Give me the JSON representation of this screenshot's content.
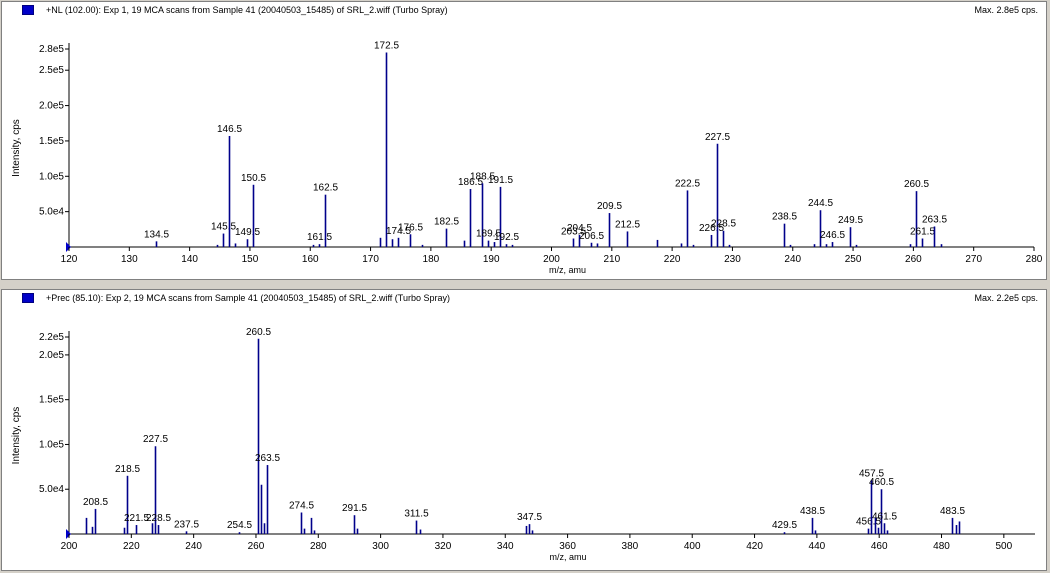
{
  "panels": [
    {
      "title": "+NL (102.00): Exp 1, 19 MCA scans from Sample 41 (20040503_15485) of SRL_2.wiff (Turbo Spray)",
      "max_label": "Max. 2.8e5 cps.",
      "header_color": "#0000c8"
    },
    {
      "title": "+Prec (85.10): Exp 2, 19 MCA scans from Sample 41 (20040503_15485) of SRL_2.wiff (Turbo Spray)",
      "max_label": "Max. 2.2e5 cps.",
      "header_color": "#0000c8"
    }
  ],
  "chart_data": [
    {
      "type": "bar",
      "xlabel": "m/z, amu",
      "ylabel": "Intensity, cps",
      "xlim": [
        120,
        280
      ],
      "ylim": [
        0,
        280000
      ],
      "x_ticks": [
        120,
        130,
        140,
        150,
        160,
        170,
        180,
        190,
        200,
        210,
        220,
        230,
        240,
        250,
        260,
        270,
        280
      ],
      "y_ticks": [
        {
          "value": 50000,
          "label": "5.0e4"
        },
        {
          "value": 100000,
          "label": "1.0e5"
        },
        {
          "value": 150000,
          "label": "1.5e5"
        },
        {
          "value": 200000,
          "label": "2.0e5"
        },
        {
          "value": 250000,
          "label": "2.5e5"
        },
        {
          "value": 280000,
          "label": "2.8e5"
        }
      ],
      "bar_color": "#00008b",
      "grid": false,
      "peaks": [
        {
          "mz": 134.5,
          "y": 8000,
          "label": "134.5"
        },
        {
          "mz": 145.5,
          "y": 19000,
          "label": "145.5"
        },
        {
          "mz": 146.5,
          "y": 157000,
          "label": "146.5"
        },
        {
          "mz": 149.5,
          "y": 11000,
          "label": "149.5"
        },
        {
          "mz": 150.5,
          "y": 88000,
          "label": "150.5"
        },
        {
          "mz": 161.5,
          "y": 4000,
          "label": "161.5"
        },
        {
          "mz": 162.5,
          "y": 74000,
          "label": "162.5"
        },
        {
          "mz": 172.5,
          "y": 275000,
          "label": "172.5"
        },
        {
          "mz": 174.5,
          "y": 13000,
          "label": "174.5"
        },
        {
          "mz": 176.5,
          "y": 18000,
          "label": "176.5"
        },
        {
          "mz": 182.5,
          "y": 26000,
          "label": "182.5"
        },
        {
          "mz": 186.5,
          "y": 82000,
          "label": "186.5"
        },
        {
          "mz": 188.5,
          "y": 90000,
          "label": "188.5"
        },
        {
          "mz": 189.5,
          "y": 9000,
          "label": "189.5"
        },
        {
          "mz": 191.5,
          "y": 85000,
          "label": "191.5"
        },
        {
          "mz": 192.5,
          "y": 4000,
          "label": "192.5"
        },
        {
          "mz": 203.5,
          "y": 12000,
          "label": "203.5"
        },
        {
          "mz": 204.5,
          "y": 17000,
          "label": "204.5"
        },
        {
          "mz": 206.5,
          "y": 6000,
          "label": "206.5"
        },
        {
          "mz": 209.5,
          "y": 48000,
          "label": "209.5"
        },
        {
          "mz": 212.5,
          "y": 22000,
          "label": "212.5"
        },
        {
          "mz": 222.5,
          "y": 80000,
          "label": "222.5"
        },
        {
          "mz": 226.5,
          "y": 17000,
          "label": "226.5"
        },
        {
          "mz": 227.5,
          "y": 146000,
          "label": "227.5"
        },
        {
          "mz": 228.5,
          "y": 23000,
          "label": "228.5"
        },
        {
          "mz": 238.5,
          "y": 33000,
          "label": "238.5"
        },
        {
          "mz": 244.5,
          "y": 52000,
          "label": "244.5"
        },
        {
          "mz": 246.5,
          "y": 7000,
          "label": "246.5"
        },
        {
          "mz": 249.5,
          "y": 28000,
          "label": "249.5"
        },
        {
          "mz": 260.5,
          "y": 79000,
          "label": "260.5"
        },
        {
          "mz": 261.5,
          "y": 12000,
          "label": "261.5"
        },
        {
          "mz": 263.5,
          "y": 29000,
          "label": "263.5"
        },
        {
          "mz": 144.5,
          "y": 3000,
          "label": ""
        },
        {
          "mz": 147.5,
          "y": 5000,
          "label": ""
        },
        {
          "mz": 160.5,
          "y": 3000,
          "label": ""
        },
        {
          "mz": 171.5,
          "y": 13000,
          "label": ""
        },
        {
          "mz": 173.5,
          "y": 11000,
          "label": ""
        },
        {
          "mz": 178.5,
          "y": 3000,
          "label": ""
        },
        {
          "mz": 185.5,
          "y": 9000,
          "label": ""
        },
        {
          "mz": 190.5,
          "y": 7000,
          "label": ""
        },
        {
          "mz": 193.5,
          "y": 3000,
          "label": ""
        },
        {
          "mz": 207.5,
          "y": 5000,
          "label": ""
        },
        {
          "mz": 217.5,
          "y": 10000,
          "label": ""
        },
        {
          "mz": 221.5,
          "y": 5000,
          "label": ""
        },
        {
          "mz": 223.5,
          "y": 3000,
          "label": ""
        },
        {
          "mz": 229.5,
          "y": 3000,
          "label": ""
        },
        {
          "mz": 239.5,
          "y": 3000,
          "label": ""
        },
        {
          "mz": 243.5,
          "y": 4000,
          "label": ""
        },
        {
          "mz": 245.5,
          "y": 4000,
          "label": ""
        },
        {
          "mz": 250.5,
          "y": 3000,
          "label": ""
        },
        {
          "mz": 259.5,
          "y": 4000,
          "label": ""
        },
        {
          "mz": 264.5,
          "y": 4000,
          "label": ""
        }
      ]
    },
    {
      "type": "bar",
      "xlabel": "m/z, amu",
      "ylabel": "Intensity, cps",
      "xlim": [
        200,
        510
      ],
      "ylim": [
        0,
        220000
      ],
      "x_ticks": [
        200,
        220,
        240,
        260,
        280,
        300,
        320,
        340,
        360,
        380,
        400,
        420,
        440,
        460,
        480,
        500
      ],
      "y_ticks": [
        {
          "value": 50000,
          "label": "5.0e4"
        },
        {
          "value": 100000,
          "label": "1.0e5"
        },
        {
          "value": 150000,
          "label": "1.5e5"
        },
        {
          "value": 200000,
          "label": "2.0e5"
        },
        {
          "value": 220000,
          "label": "2.2e5"
        }
      ],
      "bar_color": "#00008b",
      "grid": false,
      "peaks": [
        {
          "mz": 208.5,
          "y": 28000,
          "label": "208.5"
        },
        {
          "mz": 218.5,
          "y": 65000,
          "label": "218.5"
        },
        {
          "mz": 221.5,
          "y": 10000,
          "label": "221.5"
        },
        {
          "mz": 227.5,
          "y": 98000,
          "label": "227.5"
        },
        {
          "mz": 228.5,
          "y": 10000,
          "label": "228.5"
        },
        {
          "mz": 237.5,
          "y": 3000,
          "label": "237.5"
        },
        {
          "mz": 254.5,
          "y": 2000,
          "label": "254.5"
        },
        {
          "mz": 260.5,
          "y": 218000,
          "label": "260.5"
        },
        {
          "mz": 263.5,
          "y": 77000,
          "label": "263.5"
        },
        {
          "mz": 274.5,
          "y": 24000,
          "label": "274.5"
        },
        {
          "mz": 291.5,
          "y": 21000,
          "label": "291.5"
        },
        {
          "mz": 311.5,
          "y": 15000,
          "label": "311.5"
        },
        {
          "mz": 347.5,
          "y": 11000,
          "label": "347.5"
        },
        {
          "mz": 429.5,
          "y": 2000,
          "label": "429.5"
        },
        {
          "mz": 438.5,
          "y": 18000,
          "label": "438.5"
        },
        {
          "mz": 456.5,
          "y": 6000,
          "label": "456.5"
        },
        {
          "mz": 457.5,
          "y": 60000,
          "label": "457.5"
        },
        {
          "mz": 460.5,
          "y": 50000,
          "label": "460.5"
        },
        {
          "mz": 461.5,
          "y": 12000,
          "label": "461.5"
        },
        {
          "mz": 483.5,
          "y": 18000,
          "label": "483.5"
        },
        {
          "mz": 205.5,
          "y": 18000,
          "label": ""
        },
        {
          "mz": 207.5,
          "y": 8000,
          "label": ""
        },
        {
          "mz": 217.5,
          "y": 7000,
          "label": ""
        },
        {
          "mz": 226.5,
          "y": 12000,
          "label": ""
        },
        {
          "mz": 261.5,
          "y": 55000,
          "label": ""
        },
        {
          "mz": 262.5,
          "y": 12000,
          "label": ""
        },
        {
          "mz": 275.5,
          "y": 6000,
          "label": ""
        },
        {
          "mz": 277.5,
          "y": 18000,
          "label": ""
        },
        {
          "mz": 278.5,
          "y": 4000,
          "label": ""
        },
        {
          "mz": 292.5,
          "y": 6000,
          "label": ""
        },
        {
          "mz": 312.5,
          "y": 5000,
          "label": ""
        },
        {
          "mz": 346.5,
          "y": 9000,
          "label": ""
        },
        {
          "mz": 348.5,
          "y": 4000,
          "label": ""
        },
        {
          "mz": 439.5,
          "y": 4000,
          "label": ""
        },
        {
          "mz": 458.5,
          "y": 18000,
          "label": ""
        },
        {
          "mz": 459.5,
          "y": 7000,
          "label": ""
        },
        {
          "mz": 462.5,
          "y": 4000,
          "label": ""
        },
        {
          "mz": 484.5,
          "y": 10000,
          "label": ""
        },
        {
          "mz": 485.5,
          "y": 14000,
          "label": ""
        }
      ]
    }
  ]
}
